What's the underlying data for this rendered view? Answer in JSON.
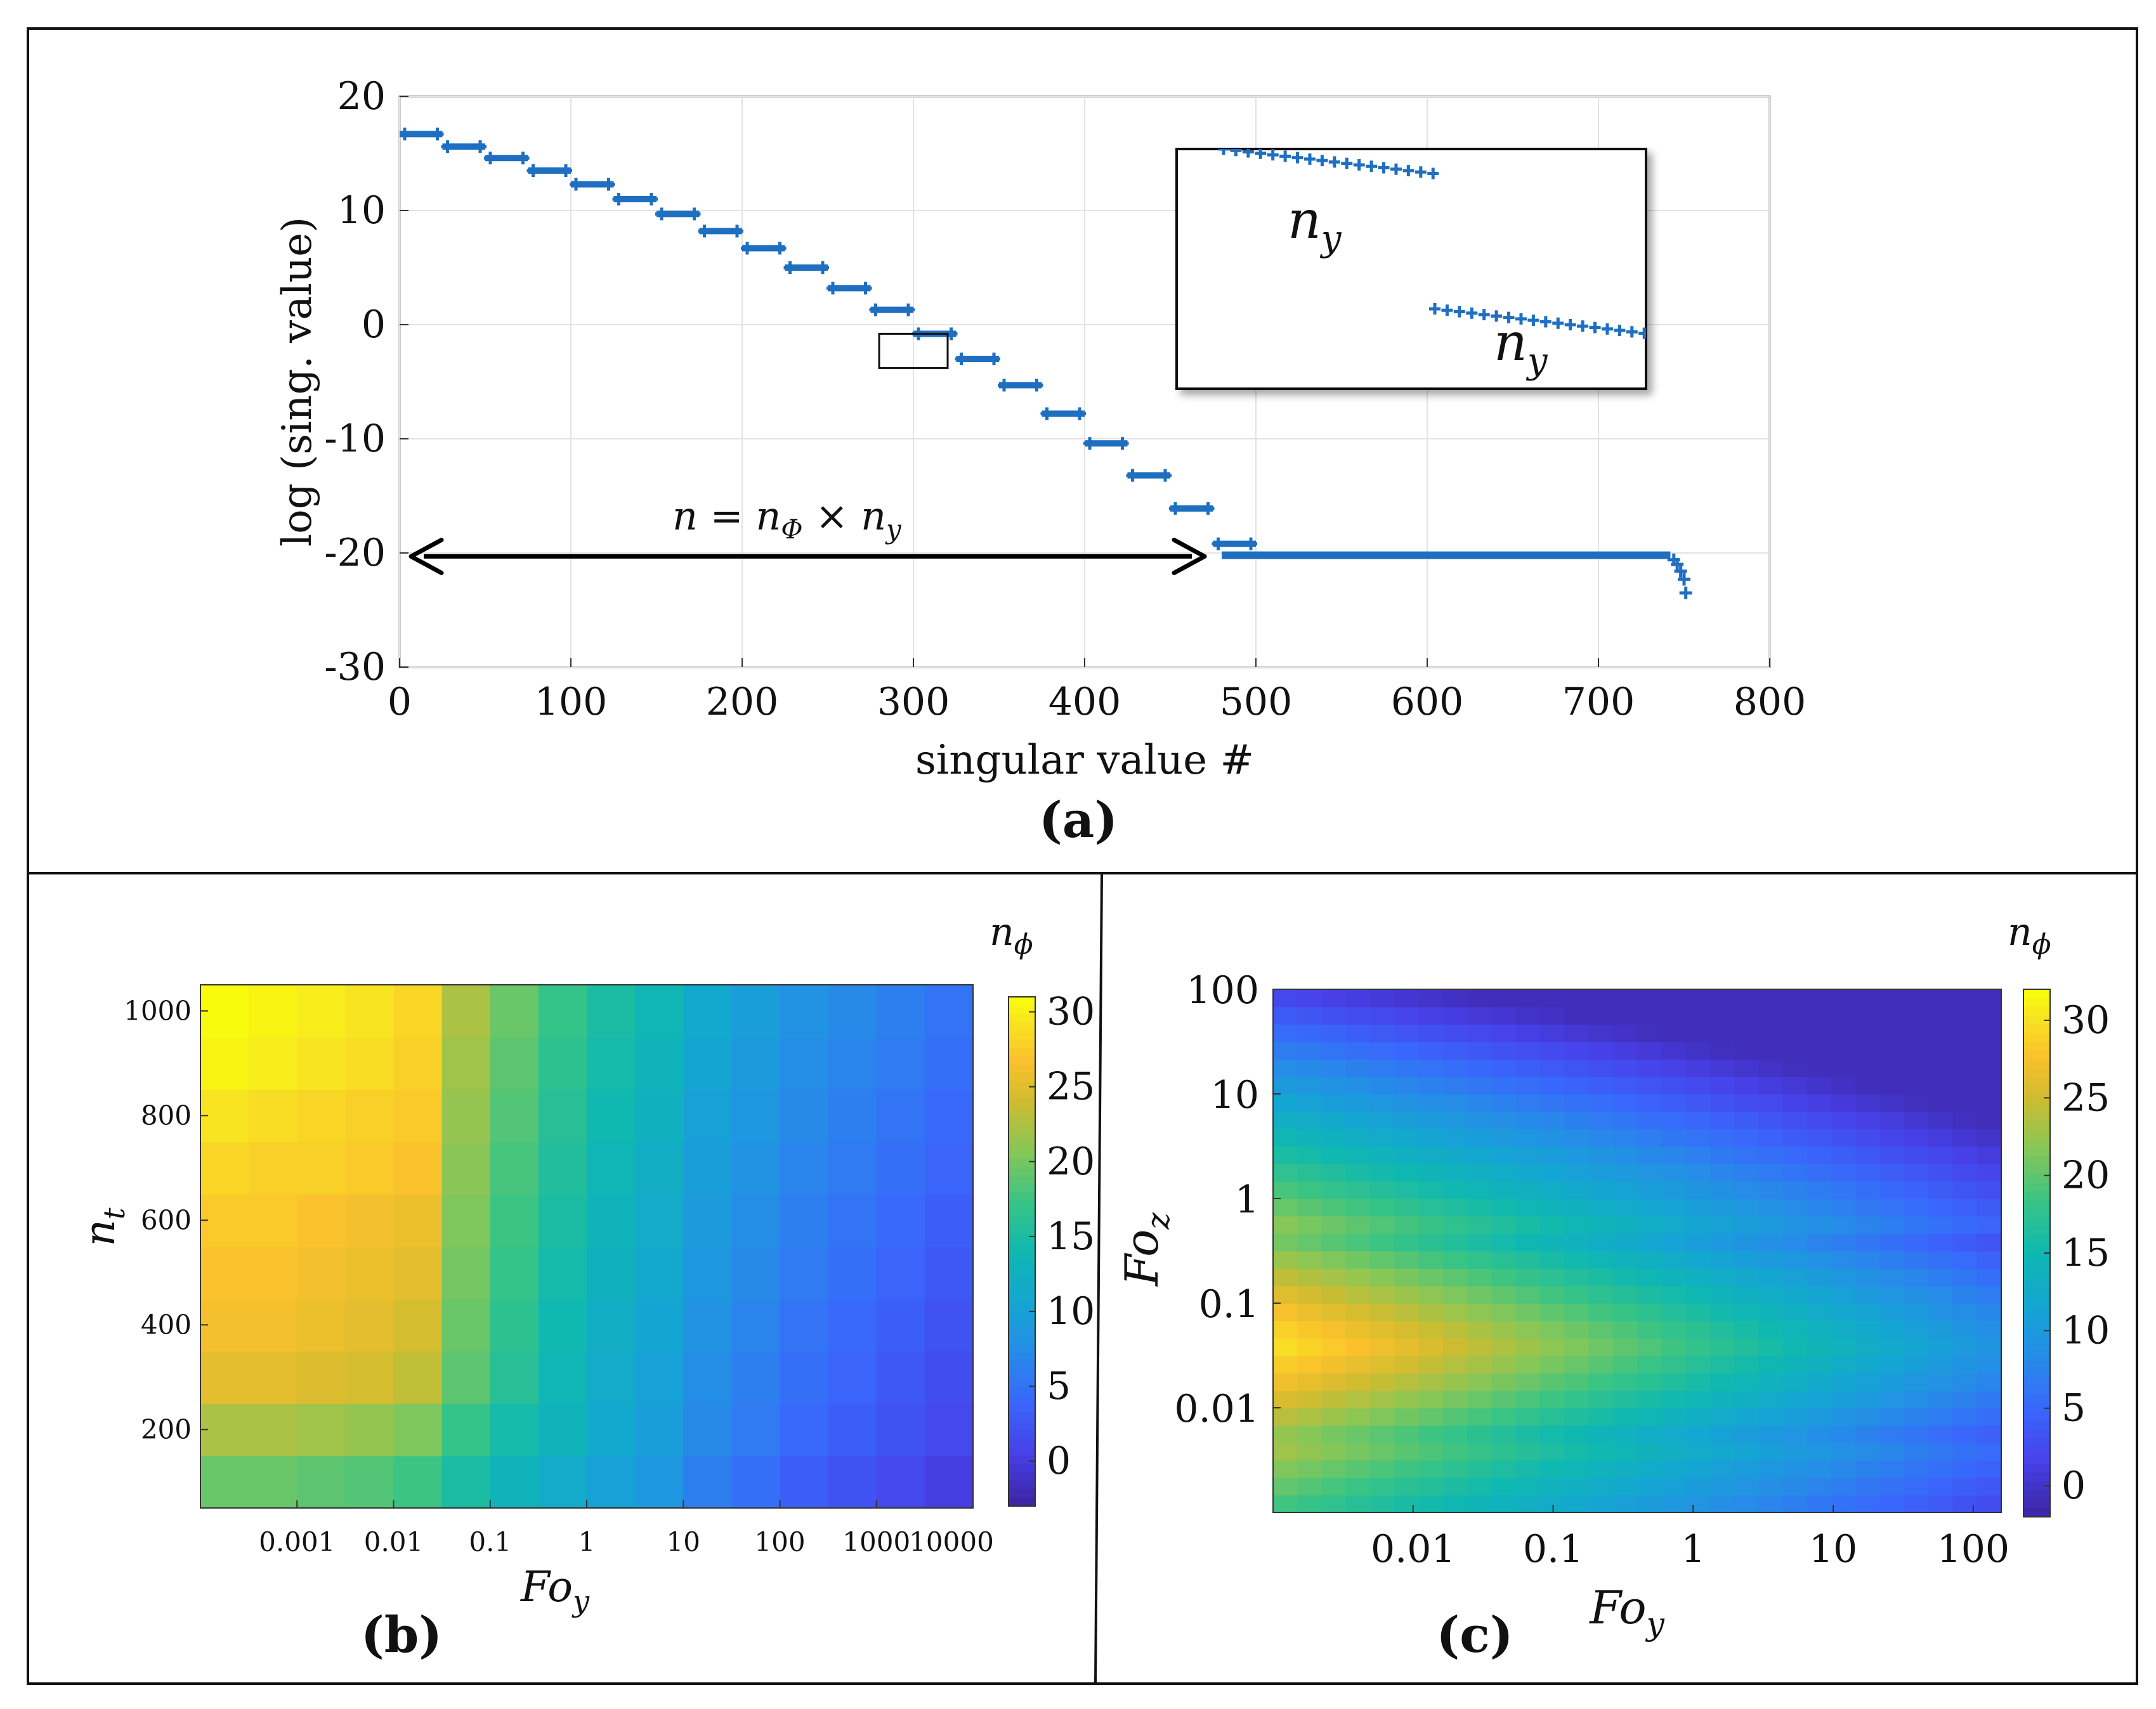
{
  "chart_data": [
    {
      "panel_label": "(a)",
      "type": "scatter",
      "xlabel": "singular value #",
      "ylabel": "log (sing. value)",
      "xlim": [
        0,
        800
      ],
      "ylim": [
        -30,
        20
      ],
      "xticks": [
        0,
        100,
        200,
        300,
        400,
        500,
        600,
        700,
        800
      ],
      "yticks": [
        -30,
        -20,
        -10,
        0,
        10,
        20
      ],
      "grid": true,
      "color": "#1f6fc1",
      "step_width": 25,
      "steps": [
        {
          "x0": 0,
          "y": 16.7
        },
        {
          "x0": 25,
          "y": 15.6
        },
        {
          "x0": 50,
          "y": 14.6
        },
        {
          "x0": 75,
          "y": 13.5
        },
        {
          "x0": 100,
          "y": 12.3
        },
        {
          "x0": 125,
          "y": 11.0
        },
        {
          "x0": 150,
          "y": 9.7
        },
        {
          "x0": 175,
          "y": 8.2
        },
        {
          "x0": 200,
          "y": 6.7
        },
        {
          "x0": 225,
          "y": 5.0
        },
        {
          "x0": 250,
          "y": 3.2
        },
        {
          "x0": 275,
          "y": 1.3
        },
        {
          "x0": 300,
          "y": -0.8
        },
        {
          "x0": 325,
          "y": -3.0
        },
        {
          "x0": 350,
          "y": -5.3
        },
        {
          "x0": 375,
          "y": -7.8
        },
        {
          "x0": 400,
          "y": -10.4
        },
        {
          "x0": 425,
          "y": -13.2
        },
        {
          "x0": 450,
          "y": -16.1
        },
        {
          "x0": 475,
          "y": -19.2
        }
      ],
      "plateau": {
        "x0": 480,
        "x1": 742,
        "y": -20.2
      },
      "tail": [
        {
          "x": 744,
          "y": -20.6
        },
        {
          "x": 746,
          "y": -21.0
        },
        {
          "x": 748,
          "y": -21.6
        },
        {
          "x": 750,
          "y": -22.3
        },
        {
          "x": 751,
          "y": -23.5
        }
      ],
      "arrow": {
        "x0": 0,
        "x1": 470,
        "y": -20.3,
        "label": "n = nΦ × ny"
      },
      "zoom_box": {
        "x0": 280,
        "x1": 320,
        "y0": -3.8,
        "y1": -0.8
      },
      "inset": {
        "label_upper": "ny",
        "label_lower": "ny"
      }
    },
    {
      "panel_label": "(b)",
      "type": "heatmap",
      "xlabel": "Fo_y",
      "ylabel": "n_t",
      "colorbar_title": "n_ϕ",
      "xscale": "log",
      "x_edges_log10": [
        -4,
        -3.5,
        -3,
        -2.5,
        -2,
        -1.5,
        -1,
        -0.5,
        0,
        0.5,
        1,
        1.5,
        2,
        2.5,
        3,
        3.5,
        4
      ],
      "xtick_labels": [
        "0.001",
        "0.01",
        "0.1",
        "1",
        "10",
        "100",
        "1000",
        "10000"
      ],
      "xtick_log10": [
        -3,
        -2,
        -1,
        0,
        1,
        2,
        3,
        4
      ],
      "y_edges": [
        50,
        150,
        250,
        350,
        450,
        550,
        650,
        750,
        850,
        950,
        1050
      ],
      "ytick_labels": [
        "200",
        "400",
        "600",
        "800",
        "1000"
      ],
      "yticks": [
        200,
        400,
        600,
        800,
        1000
      ],
      "clim": [
        -3,
        31
      ],
      "colorbar_ticks": [
        0,
        5,
        10,
        15,
        20,
        25,
        30
      ],
      "z_rows_bottom_to_top": [
        [
          19.5,
          19.5,
          19,
          18.5,
          17.5,
          15,
          13,
          11.5,
          10,
          8.5,
          6,
          4.5,
          3,
          2,
          1,
          0
        ],
        [
          22.5,
          22.5,
          22,
          21.5,
          20.5,
          17,
          14.5,
          13,
          11,
          9.5,
          7,
          5.5,
          4,
          3,
          2,
          1
        ],
        [
          25.5,
          25.5,
          25,
          24.5,
          23.5,
          19,
          16,
          13.5,
          11.5,
          10,
          7.5,
          6,
          4.5,
          3.5,
          2.5,
          1.5
        ],
        [
          26.5,
          26.5,
          26,
          25.5,
          24.5,
          19.5,
          16.5,
          14,
          12,
          10.5,
          8,
          6.5,
          5,
          4,
          3,
          2
        ],
        [
          27,
          27,
          26.5,
          26,
          25.5,
          20,
          17,
          14.5,
          12.5,
          11,
          8.5,
          7,
          5.5,
          4.5,
          3.5,
          2.5
        ],
        [
          27.5,
          27.5,
          27,
          26.5,
          26,
          20.5,
          17.5,
          15,
          13,
          11.5,
          9,
          7.5,
          6,
          5,
          4,
          3
        ],
        [
          28.5,
          28,
          28,
          27.5,
          27,
          21,
          18,
          15.5,
          13.5,
          12,
          9.5,
          8,
          6.5,
          5.5,
          4.5,
          3.5
        ],
        [
          29.5,
          29,
          28.5,
          28,
          27.5,
          21.5,
          18.5,
          16,
          14,
          12.5,
          10,
          8.5,
          7,
          6,
          5,
          4
        ],
        [
          30.5,
          30,
          29.5,
          29,
          28,
          22,
          19,
          16.5,
          14.5,
          13,
          10.5,
          9,
          7.5,
          6.5,
          5.5,
          4.5
        ],
        [
          31,
          30.5,
          30,
          29.5,
          28.5,
          22.5,
          19.5,
          17,
          15,
          13.5,
          11,
          9.5,
          8,
          7,
          6,
          5
        ]
      ]
    },
    {
      "panel_label": "(c)",
      "type": "heatmap",
      "xlabel": "Fo_y",
      "ylabel": "Fo_z",
      "colorbar_title": "n_ϕ",
      "xscale": "log",
      "yscale": "log",
      "xlim_log10": [
        -3,
        2.2
      ],
      "ylim_log10": [
        -3,
        2.0
      ],
      "grid_n": 30,
      "xtick_labels": [
        "0.01",
        "0.1",
        "1",
        "10",
        "100"
      ],
      "xtick_log10": [
        -2,
        -1,
        0,
        1,
        2
      ],
      "ytick_labels": [
        "0.01",
        "0.1",
        "1",
        "10",
        "100"
      ],
      "ytick_log10": [
        -2,
        -1,
        0,
        1,
        2
      ],
      "clim": [
        -2,
        32
      ],
      "colorbar_ticks": [
        0,
        5,
        10,
        15,
        20,
        25,
        30
      ],
      "model": {
        "peak": 30.5,
        "peak_fo_z_log10": -1.4,
        "fo_y_decay_per_decade": 4.6,
        "fo_z_decay_per_decade": 7.5,
        "floor": -1.0
      }
    }
  ],
  "axis_symbols": {
    "fo": "Fo",
    "sub_y": "y",
    "sub_z": "z",
    "n": "n",
    "sub_t": "t",
    "phi": "ϕ"
  }
}
